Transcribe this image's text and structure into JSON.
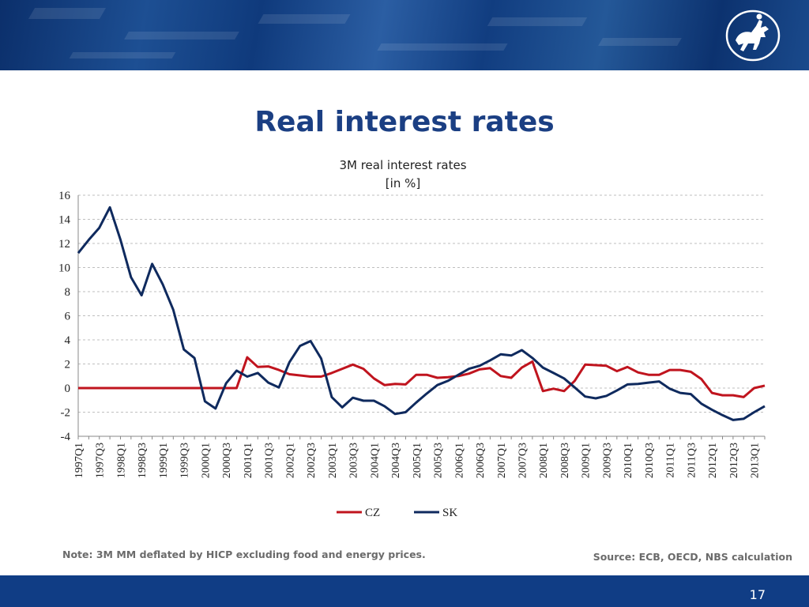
{
  "slide": {
    "title": "Real interest rates",
    "note": "Note: 3M MM deflated by HICP excluding food and energy prices.",
    "source": "Source: ECB, OECD, NBS calculation",
    "page_number": "17"
  },
  "colors": {
    "cz": "#c0141e",
    "sk": "#0f2a5e",
    "grid": "#bfbfbf",
    "header": "#123f82",
    "footer": "#103d85"
  },
  "chart_data": {
    "type": "line",
    "title": "3M real interest rates",
    "subtitle": "[in %]",
    "ylim": [
      -4,
      16
    ],
    "yticks": [
      -4,
      -2,
      0,
      2,
      4,
      6,
      8,
      10,
      12,
      14,
      16
    ],
    "grid": true,
    "legend_position": "bottom",
    "x": [
      "1997Q1",
      "1997Q2",
      "1997Q3",
      "1997Q4",
      "1998Q1",
      "1998Q2",
      "1998Q3",
      "1998Q4",
      "1999Q1",
      "1999Q2",
      "1999Q3",
      "1999Q4",
      "2000Q1",
      "2000Q2",
      "2000Q3",
      "2000Q4",
      "2001Q1",
      "2001Q2",
      "2001Q3",
      "2001Q4",
      "2002Q1",
      "2002Q2",
      "2002Q3",
      "2002Q4",
      "2003Q1",
      "2003Q2",
      "2003Q3",
      "2003Q4",
      "2004Q1",
      "2004Q2",
      "2004Q3",
      "2004Q4",
      "2005Q1",
      "2005Q2",
      "2005Q3",
      "2005Q4",
      "2006Q1",
      "2006Q2",
      "2006Q3",
      "2006Q4",
      "2007Q1",
      "2007Q2",
      "2007Q3",
      "2007Q4",
      "2008Q1",
      "2008Q2",
      "2008Q3",
      "2008Q4",
      "2009Q1",
      "2009Q2",
      "2009Q3",
      "2009Q4",
      "2010Q1",
      "2010Q2",
      "2010Q3",
      "2010Q4",
      "2011Q1",
      "2011Q2",
      "2011Q3",
      "2011Q4",
      "2012Q1",
      "2012Q2",
      "2012Q3",
      "2012Q4",
      "2013Q1",
      "2013Q2"
    ],
    "x_tick_labels": [
      "1997Q1",
      "1997Q3",
      "1998Q1",
      "1998Q3",
      "1999Q1",
      "1999Q3",
      "2000Q1",
      "2000Q3",
      "2001Q1",
      "2001Q3",
      "2002Q1",
      "2002Q3",
      "2003Q1",
      "2003Q3",
      "2004Q1",
      "2004Q3",
      "2005Q1",
      "2005Q3",
      "2006Q1",
      "2006Q3",
      "2007Q1",
      "2007Q3",
      "2008Q1",
      "2008Q3",
      "2009Q1",
      "2009Q3",
      "2010Q1",
      "2010Q3",
      "2011Q1",
      "2011Q3",
      "2012Q1",
      "2012Q3",
      "2013Q1"
    ],
    "series": [
      {
        "name": "CZ",
        "values": [
          0,
          0,
          0,
          0,
          0,
          0,
          0,
          0,
          0,
          0,
          0,
          0,
          0,
          0,
          0,
          0,
          2.55,
          1.75,
          1.8,
          1.5,
          1.15,
          1.05,
          0.95,
          0.95,
          1.25,
          1.6,
          1.95,
          1.6,
          0.8,
          0.25,
          0.35,
          0.3,
          1.1,
          1.1,
          0.85,
          0.9,
          1.0,
          1.2,
          1.55,
          1.65,
          1.0,
          0.85,
          1.7,
          2.2,
          -0.25,
          -0.05,
          -0.25,
          0.6,
          1.95,
          1.9,
          1.85,
          1.4,
          1.75,
          1.3,
          1.1,
          1.1,
          1.5,
          1.5,
          1.35,
          0.75,
          -0.4,
          -0.6,
          -0.6,
          -0.75,
          0.0,
          0.2
        ]
      },
      {
        "name": "SK",
        "values": [
          11.2,
          12.3,
          13.3,
          15.0,
          12.3,
          9.2,
          7.7,
          10.3,
          8.6,
          6.5,
          3.2,
          2.5,
          -1.1,
          -1.7,
          0.4,
          1.45,
          0.95,
          1.25,
          0.45,
          0.05,
          2.15,
          3.5,
          3.9,
          2.45,
          -0.75,
          -1.6,
          -0.8,
          -1.05,
          -1.05,
          -1.5,
          -2.15,
          -2.0,
          -1.2,
          -0.45,
          0.25,
          0.6,
          1.1,
          1.6,
          1.85,
          2.3,
          2.8,
          2.7,
          3.15,
          2.5,
          1.7,
          1.25,
          0.8,
          0.05,
          -0.7,
          -0.85,
          -0.65,
          -0.2,
          0.3,
          0.35,
          0.45,
          0.55,
          -0.05,
          -0.4,
          -0.5,
          -1.3,
          -1.8,
          -2.25,
          -2.65,
          -2.55,
          -2.0,
          -1.5
        ]
      }
    ]
  }
}
